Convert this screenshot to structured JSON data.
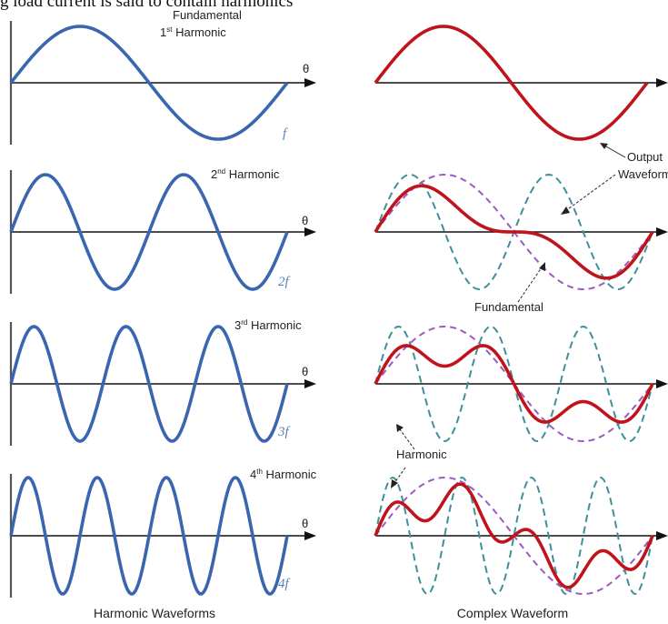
{
  "header_text": "g load current is said to contain harmonics",
  "panels": [
    {
      "harmonic": 1,
      "label_top": "Fundamental",
      "label_num": "1",
      "label_sup": "st",
      "label_word": " Harmonic",
      "axis_label": "θ",
      "freq_label": "f"
    },
    {
      "harmonic": 2,
      "label_num": "2",
      "label_sup": "nd",
      "label_word": " Harmonic",
      "axis_label": "θ",
      "freq_label": "2f"
    },
    {
      "harmonic": 3,
      "label_num": "3",
      "label_sup": "rd",
      "label_word": " Harmonic",
      "axis_label": "θ",
      "freq_label": "3f"
    },
    {
      "harmonic": 4,
      "label_num": "4",
      "label_sup": "th",
      "label_word": " Harmonic",
      "axis_label": "θ",
      "freq_label": "4f"
    }
  ],
  "annotations": {
    "output": "Output",
    "waveform": "Waveform",
    "fundamental": "Fundamental",
    "harmonic": "Harmonic"
  },
  "captions": {
    "left": "Harmonic Waveforms",
    "right": "Complex Waveform"
  },
  "colors": {
    "harmonic_wave": "#3a66b0",
    "output_wave": "#c0141c",
    "fundamental_dashed": "#9b59c4",
    "harmonic_dashed": "#3f8f9a",
    "axis": "#111111"
  }
}
